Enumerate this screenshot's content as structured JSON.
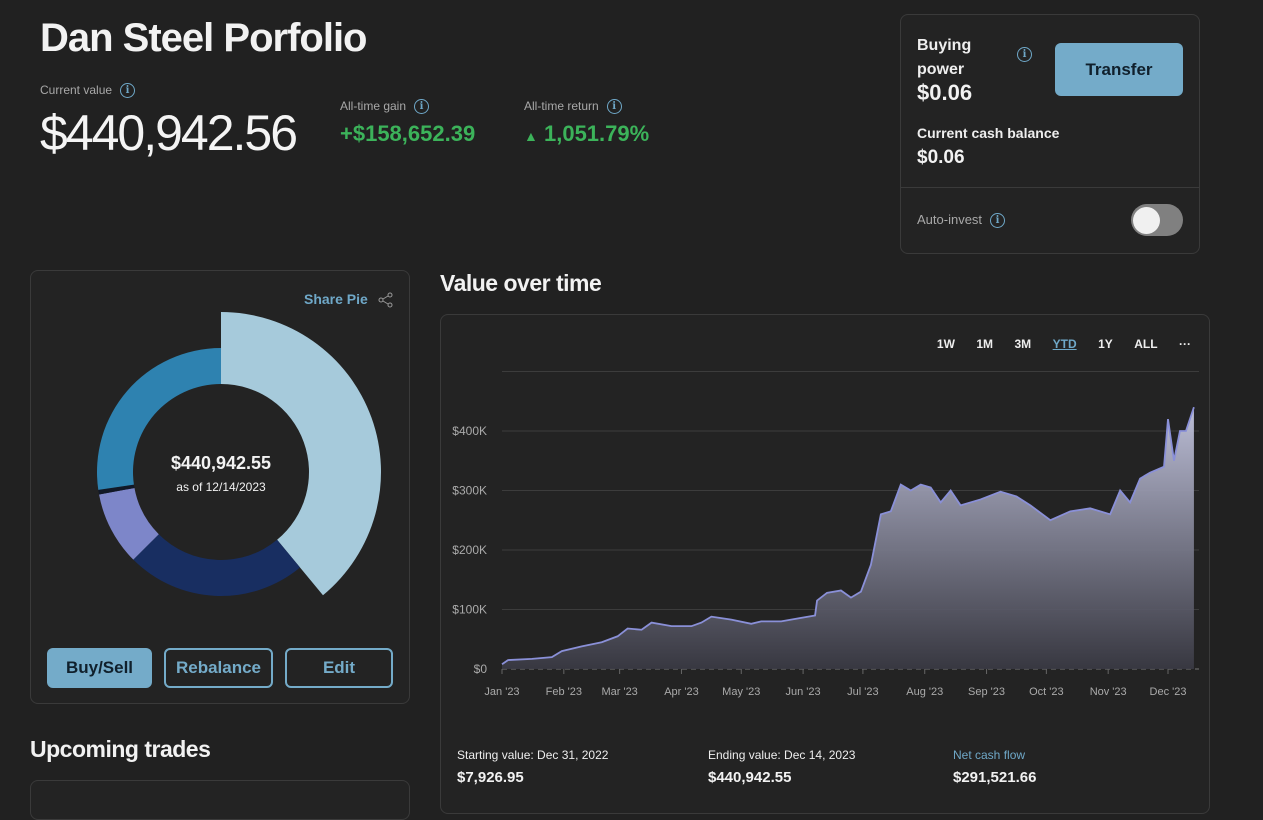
{
  "header": {
    "title": "Dan Steel Porfolio",
    "current_value_label": "Current value",
    "current_value": "$440,942.56",
    "gain_label": "All-time gain",
    "gain_value": "+$158,652.39",
    "return_label": "All-time return",
    "return_value": "1,051.79%"
  },
  "cash": {
    "buying_power_label": "Buying power",
    "buying_power": "$0.06",
    "cash_label": "Current cash balance",
    "cash_value": "$0.06",
    "transfer": "Transfer",
    "auto_invest_label": "Auto-invest",
    "auto_invest_on": false
  },
  "pie": {
    "share": "Share Pie",
    "total": "$440,942.55",
    "as_of": "as of 12/14/2023",
    "slices": [
      {
        "pct": 39,
        "color": "#a6cadb",
        "expanded": true
      },
      {
        "pct": 23.5,
        "color": "#182e61"
      },
      {
        "pct": 9.6,
        "color": "#7d86c9"
      },
      {
        "pct": 0.6,
        "color": "#111827"
      },
      {
        "pct": 27.3,
        "color": "#2e82b0"
      }
    ],
    "buttons": {
      "buy_sell": "Buy/Sell",
      "rebalance": "Rebalance",
      "edit": "Edit"
    }
  },
  "upcoming": {
    "title": "Upcoming trades"
  },
  "value_chart": {
    "title": "Value over time",
    "ranges": [
      "1W",
      "1M",
      "3M",
      "YTD",
      "1Y",
      "ALL"
    ],
    "active_range": "YTD",
    "more": "···",
    "footer": {
      "start_label": "Starting value: Dec 31, 2022",
      "start_value": "$7,926.95",
      "end_label": "Ending value: Dec 14, 2023",
      "end_value": "$440,942.55",
      "flow_label": "Net cash flow",
      "flow_value": "$291,521.66"
    }
  },
  "chart_data": {
    "type": "area",
    "title": "Value over time",
    "xlabel": "",
    "ylabel": "",
    "ylim": [
      0,
      500
    ],
    "y_unit": "K USD",
    "yticks": [
      {
        "v": 0,
        "label": "$0"
      },
      {
        "v": 100,
        "label": "$100K"
      },
      {
        "v": 200,
        "label": "$200K"
      },
      {
        "v": 300,
        "label": "$300K"
      },
      {
        "v": 400,
        "label": "$400K"
      },
      {
        "v": 500,
        "label": ""
      }
    ],
    "xticks": [
      {
        "d": 0,
        "label": "Jan '23"
      },
      {
        "d": 31,
        "label": "Feb '23"
      },
      {
        "d": 59,
        "label": "Mar '23"
      },
      {
        "d": 90,
        "label": "Apr '23"
      },
      {
        "d": 120,
        "label": "May '23"
      },
      {
        "d": 151,
        "label": "Jun '23"
      },
      {
        "d": 181,
        "label": "Jul '23"
      },
      {
        "d": 212,
        "label": "Aug '23"
      },
      {
        "d": 243,
        "label": "Sep '23"
      },
      {
        "d": 273,
        "label": "Oct '23"
      },
      {
        "d": 304,
        "label": "Nov '23"
      },
      {
        "d": 334,
        "label": "Dec '23"
      }
    ],
    "x_day": [
      0,
      3,
      15,
      25,
      30,
      40,
      50,
      58,
      63,
      70,
      75,
      85,
      95,
      100,
      105,
      115,
      125,
      130,
      140,
      150,
      157,
      158,
      163,
      170,
      175,
      180,
      185,
      190,
      195,
      200,
      205,
      210,
      215,
      220,
      225,
      230,
      240,
      250,
      258,
      265,
      275,
      285,
      295,
      305,
      310,
      315,
      320,
      325,
      332,
      334,
      337,
      340,
      343,
      347
    ],
    "values": [
      8,
      15,
      17,
      20,
      30,
      38,
      45,
      55,
      68,
      66,
      78,
      72,
      72,
      78,
      88,
      83,
      76,
      80,
      80,
      86,
      90,
      115,
      128,
      132,
      120,
      130,
      175,
      260,
      265,
      310,
      300,
      310,
      305,
      280,
      300,
      275,
      285,
      298,
      290,
      275,
      250,
      265,
      270,
      260,
      300,
      280,
      320,
      330,
      340,
      420,
      350,
      400,
      400,
      440
    ]
  }
}
